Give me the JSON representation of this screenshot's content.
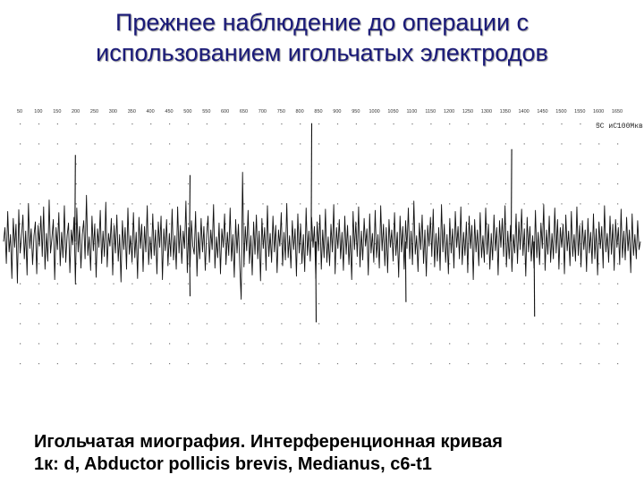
{
  "slide": {
    "title_line1": "Прежнее наблюдение до операции с",
    "title_line2": "использованием игольчатых электродов",
    "caption_line1": "Игольчатая миография. Интерференционная кривая",
    "caption_line2": "1к: d, Abductor pollicis brevis, Medianus, c6-t1",
    "title_color": "#1a1a78",
    "caption_color": "#000000"
  },
  "chart_data": {
    "type": "line",
    "title": "",
    "xlabel": "",
    "ylabel": "",
    "grid": "dotted",
    "scale_label": "5С иС100Мкв",
    "x_tick_labels": [
      "50",
      "100",
      "150",
      "200",
      "250",
      "300",
      "350",
      "400",
      "450",
      "500",
      "550",
      "600",
      "650",
      "700",
      "750",
      "800",
      "850",
      "900",
      "950",
      "1000",
      "1050",
      "1100",
      "1150",
      "1200",
      "1250",
      "1300",
      "1350",
      "1400",
      "1450",
      "1500",
      "1550",
      "1600",
      "1650"
    ],
    "series": [
      {
        "values": [
          0,
          24,
          -38,
          52,
          -18,
          12,
          -64,
          40,
          -10,
          30,
          -72,
          55,
          -20,
          8,
          46,
          -30,
          18,
          -58,
          66,
          -12,
          22,
          -40,
          10,
          34,
          -56,
          28,
          -8,
          44,
          -26,
          60,
          -48,
          14,
          -34,
          72,
          -20,
          6,
          38,
          -66,
          24,
          -14,
          50,
          -42,
          16,
          -28,
          62,
          -36,
          10,
          32,
          -54,
          20,
          -6,
          42,
          -74,
          58,
          -18,
          26,
          -46,
          12,
          36,
          -30,
          80,
          -24,
          8,
          -50,
          44,
          -16,
          30,
          -62,
          22,
          -10,
          54,
          -38,
          18,
          -26,
          68,
          -44,
          14,
          -8,
          40,
          -58,
          28,
          -20,
          46,
          -34,
          12,
          -70,
          36,
          -14,
          24,
          -48,
          58,
          -22,
          10,
          -36,
          50,
          -28,
          16,
          -64,
          42,
          -12,
          30,
          -52,
          26,
          -18,
          62,
          -40,
          8,
          -30,
          48,
          -24,
          20,
          -56,
          34,
          -10,
          44,
          -66,
          22,
          -16,
          38,
          -42,
          14,
          -26,
          56,
          -32,
          10,
          -48,
          60,
          -20,
          28,
          -38,
          18,
          -12,
          70,
          -54,
          24,
          -44,
          36,
          -8,
          -22,
          52,
          -60,
          16,
          -30,
          40,
          -18,
          26,
          -50,
          12,
          44,
          -36,
          20,
          -14,
          64,
          -46,
          8,
          -28,
          32,
          -56,
          22,
          -10,
          48,
          -40,
          16,
          -24,
          58,
          -34,
          12,
          -62,
          38,
          -20,
          30,
          -44,
          -100,
          120,
          -44,
          26,
          -16,
          54,
          -38,
          10,
          -58,
          34,
          -22,
          46,
          -30,
          18,
          -68,
          40,
          -12,
          24,
          -50,
          62,
          -26,
          14,
          -36,
          44,
          -18,
          28,
          -54,
          20,
          -8,
          50,
          -42,
          16,
          -32,
          66,
          -28,
          10,
          -46,
          36,
          -14,
          22,
          -60,
          48,
          -20,
          30,
          -38,
          12,
          -52,
          58,
          -24,
          18,
          -34,
          42,
          -10,
          26,
          -64,
          34,
          -16,
          46,
          -48,
          20,
          -28,
          56,
          -36,
          8,
          -42,
          30,
          -18,
          64,
          -56,
          24,
          -12,
          38,
          -30,
          16,
          -50,
          44,
          -22,
          28,
          -40,
          10,
          -66,
          52,
          -14,
          34,
          -26,
          60,
          -44,
          18,
          -32,
          40,
          -8,
          22,
          -58,
          48,
          -20,
          14,
          -36,
          54,
          -28,
          12,
          -46,
          62,
          -16,
          30,
          -42,
          24,
          -54,
          38,
          -10,
          20,
          -34,
          50,
          -24,
          16,
          -62,
          44,
          -18,
          26,
          -48,
          36,
          -12,
          58,
          -30,
          18,
          -40,
          70,
          -22,
          10,
          -52,
          32,
          -14,
          46,
          -38,
          20,
          -60,
          28,
          -8,
          42,
          -26,
          56,
          -44,
          14,
          -34,
          24,
          -50,
          64,
          -18,
          30,
          -36,
          12,
          -56,
          40,
          -20,
          22,
          -46,
          52,
          -10,
          26,
          -30,
          60,
          -40,
          16,
          -24,
          34,
          -54,
          44,
          -12,
          28,
          -66,
          38,
          -18,
          20,
          -42,
          50,
          -28,
          10,
          -36,
          58,
          -22,
          30,
          -48,
          14,
          -32,
          46,
          -16,
          24,
          -58,
          36,
          -10,
          40,
          -26,
          62,
          -44,
          18,
          -30,
          28,
          -52,
          12,
          -20,
          48,
          -38,
          34,
          -14,
          56,
          -24,
          22,
          -60,
          42,
          -18,
          26,
          -34,
          10,
          -46,
          54,
          -28,
          16,
          -40,
          32,
          -12,
          64,
          -50,
          20,
          -22,
          44,
          -36,
          14,
          -30,
          58,
          -20,
          38,
          -48,
          24,
          -10,
          30,
          -56,
          46,
          -16,
          18,
          -42,
          52,
          -26,
          12,
          -34,
          60,
          -24,
          28,
          -44,
          36,
          -14,
          20,
          -52,
          40,
          -20,
          16,
          -38,
          48,
          -30,
          22,
          -58,
          34,
          -12,
          26,
          -46,
          62,
          -18,
          14,
          -36,
          44,
          -22,
          30,
          -50,
          38,
          -10,
          24,
          -40,
          56,
          -28,
          18,
          -32,
          42,
          -16,
          20,
          -54,
          48,
          -24,
          12,
          -30,
          36,
          -14,
          0
        ]
      }
    ],
    "spikes": [
      {
        "at": 0.112,
        "value": 150
      },
      {
        "at": 0.292,
        "value": 115
      },
      {
        "at": 0.483,
        "value": 205
      },
      {
        "at": 0.49,
        "value": -140
      },
      {
        "at": 0.292,
        "value": -95
      },
      {
        "at": 0.631,
        "value": -105
      },
      {
        "at": 0.797,
        "value": 160
      },
      {
        "at": 0.833,
        "value": -130
      }
    ],
    "ylim": [
      -220,
      220
    ]
  }
}
